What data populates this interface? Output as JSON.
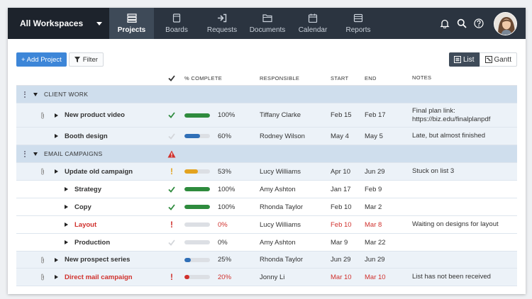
{
  "workspace": {
    "label": "All Workspaces"
  },
  "nav": {
    "items": [
      {
        "label": "Projects",
        "icon": "projects-icon"
      },
      {
        "label": "Boards",
        "icon": "boards-icon"
      },
      {
        "label": "Requests",
        "icon": "requests-icon"
      },
      {
        "label": "Documents",
        "icon": "documents-icon"
      },
      {
        "label": "Calendar",
        "icon": "calendar-icon"
      },
      {
        "label": "Reports",
        "icon": "reports-icon"
      }
    ],
    "active": "Projects"
  },
  "toolbar": {
    "add_label": "+ Add Project",
    "filter_label": "Filter",
    "list_label": "List",
    "gantt_label": "Gantt"
  },
  "columns": {
    "complete": "% COMPLETE",
    "responsible": "RESPONSIBLE",
    "start": "START",
    "end": "END",
    "notes": "NOTES"
  },
  "colors": {
    "green": "#2e8b3d",
    "blue": "#2f6fb7",
    "orange": "#e3a31f",
    "red": "#d0312d",
    "group_bg": "#cfdeed"
  },
  "groups": [
    {
      "name": "CLIENT WORK",
      "warning": false,
      "rows": [
        {
          "name": "New product video",
          "status": "done",
          "progress": 100,
          "pct": "100%",
          "bar_color": "green",
          "responsible": "Tiffany Clarke",
          "start": "Feb 15",
          "end": "Feb 17",
          "notes": "Final plan link: https://biz.edu/finalplanpdf",
          "attachment": true,
          "level": 1,
          "overdue": false
        },
        {
          "name": "Booth design",
          "status": "pending",
          "progress": 60,
          "pct": "60%",
          "bar_color": "blue",
          "responsible": "Rodney Wilson",
          "start": "May 4",
          "end": "May 5",
          "notes": "Late, but almost finished",
          "attachment": false,
          "level": 1,
          "overdue": false
        }
      ]
    },
    {
      "name": "EMAIL CAMPAIGNS",
      "warning": true,
      "rows": [
        {
          "name": "Update old campaign",
          "status": "alert-orange",
          "progress": 53,
          "pct": "53%",
          "bar_color": "orange",
          "responsible": "Lucy Williams",
          "start": "Apr 10",
          "end": "Jun 29",
          "notes": "Stuck on list 3",
          "attachment": true,
          "level": 1,
          "overdue": false
        },
        {
          "name": "Strategy",
          "status": "done",
          "progress": 100,
          "pct": "100%",
          "bar_color": "green",
          "responsible": "Amy Ashton",
          "start": "Jan 17",
          "end": "Feb 9",
          "notes": "",
          "attachment": false,
          "level": 2,
          "overdue": false
        },
        {
          "name": "Copy",
          "status": "done",
          "progress": 100,
          "pct": "100%",
          "bar_color": "green",
          "responsible": "Rhonda Taylor",
          "start": "Feb 10",
          "end": "Mar 2",
          "notes": "",
          "attachment": false,
          "level": 2,
          "overdue": false
        },
        {
          "name": "Layout",
          "status": "alert-red",
          "progress": 0,
          "pct": "0%",
          "bar_color": "red",
          "responsible": "Lucy Williams",
          "start": "Feb 10",
          "end": "Mar 8",
          "notes": "Waiting on designs for layout",
          "attachment": false,
          "level": 2,
          "overdue": true
        },
        {
          "name": "Production",
          "status": "pending",
          "progress": 0,
          "pct": "0%",
          "bar_color": "blue",
          "responsible": "Amy Ashton",
          "start": "Mar 9",
          "end": "Mar 22",
          "notes": "",
          "attachment": false,
          "level": 2,
          "overdue": false
        },
        {
          "name": "New prospect series",
          "status": "none",
          "progress": 25,
          "pct": "25%",
          "bar_color": "blue",
          "responsible": "Rhonda Taylor",
          "start": "Jun 29",
          "end": "Jun 29",
          "notes": "",
          "attachment": true,
          "level": 1,
          "overdue": false
        },
        {
          "name": "Direct mail campaign",
          "status": "alert-red",
          "progress": 20,
          "pct": "20%",
          "bar_color": "red",
          "responsible": "Jonny Li",
          "start": "Mar 10",
          "end": "Mar 10",
          "notes": "List has not been received",
          "attachment": true,
          "level": 1,
          "overdue": true
        }
      ]
    }
  ]
}
